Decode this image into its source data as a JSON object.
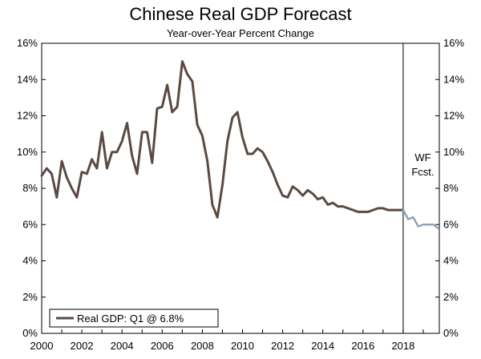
{
  "chart_data": {
    "type": "line",
    "title": "Chinese Real GDP Forecast",
    "subtitle": "Year-over-Year Percent Change",
    "xlim": [
      2000,
      2019.8
    ],
    "ylim": [
      0,
      16
    ],
    "y_ticks": [
      "0%",
      "2%",
      "4%",
      "6%",
      "8%",
      "10%",
      "12%",
      "14%",
      "16%"
    ],
    "x_ticks": [
      "2000",
      "2002",
      "2004",
      "2006",
      "2008",
      "2010",
      "2012",
      "2014",
      "2016",
      "2018"
    ],
    "grid": false,
    "legend_position": "bottom-left",
    "forecast_label_line1": "WF",
    "forecast_label_line2": "Fcst.",
    "forecast_start": 2018,
    "series": [
      {
        "name": "Real GDP: Q1 @ 6.8%",
        "color": "#5a4a42",
        "x": [
          2000.0,
          2000.25,
          2000.5,
          2000.75,
          2001.0,
          2001.25,
          2001.5,
          2001.75,
          2002.0,
          2002.25,
          2002.5,
          2002.75,
          2003.0,
          2003.25,
          2003.5,
          2003.75,
          2004.0,
          2004.25,
          2004.5,
          2004.75,
          2005.0,
          2005.25,
          2005.5,
          2005.75,
          2006.0,
          2006.25,
          2006.5,
          2006.75,
          2007.0,
          2007.25,
          2007.5,
          2007.75,
          2008.0,
          2008.25,
          2008.5,
          2008.75,
          2009.0,
          2009.25,
          2009.5,
          2009.75,
          2010.0,
          2010.25,
          2010.5,
          2010.75,
          2011.0,
          2011.25,
          2011.5,
          2011.75,
          2012.0,
          2012.25,
          2012.5,
          2012.75,
          2013.0,
          2013.25,
          2013.5,
          2013.75,
          2014.0,
          2014.25,
          2014.5,
          2014.75,
          2015.0,
          2015.25,
          2015.5,
          2015.75,
          2016.0,
          2016.25,
          2016.5,
          2016.75,
          2017.0,
          2017.25,
          2017.5,
          2017.75,
          2018.0
        ],
        "y": [
          8.7,
          9.1,
          8.8,
          7.5,
          9.5,
          8.6,
          8.0,
          7.5,
          8.9,
          8.8,
          9.6,
          9.1,
          11.1,
          9.1,
          10.0,
          10.0,
          10.6,
          11.6,
          9.8,
          8.8,
          11.1,
          11.1,
          9.4,
          12.4,
          12.5,
          13.7,
          12.2,
          12.5,
          15.0,
          14.3,
          13.9,
          11.5,
          10.9,
          9.5,
          7.1,
          6.4,
          8.2,
          10.6,
          11.9,
          12.2,
          10.8,
          9.9,
          9.9,
          10.2,
          10.0,
          9.5,
          8.9,
          8.2,
          7.6,
          7.5,
          8.1,
          7.9,
          7.6,
          7.9,
          7.7,
          7.4,
          7.5,
          7.1,
          7.2,
          7.0,
          7.0,
          6.9,
          6.8,
          6.7,
          6.7,
          6.7,
          6.8,
          6.9,
          6.9,
          6.8,
          6.8,
          6.8,
          6.8
        ]
      },
      {
        "name": "Forecast",
        "color": "#8fa4b8",
        "x": [
          2018.0,
          2018.25,
          2018.5,
          2018.75,
          2019.0,
          2019.25,
          2019.5,
          2019.75
        ],
        "y": [
          6.8,
          6.3,
          6.4,
          5.9,
          6.0,
          6.0,
          6.0,
          5.8
        ]
      }
    ]
  }
}
